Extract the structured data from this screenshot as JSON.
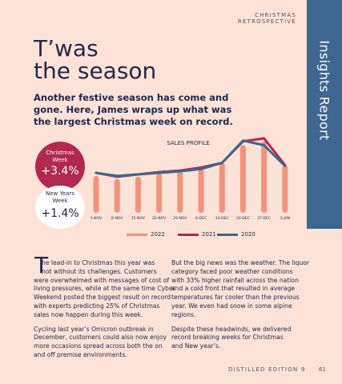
{
  "header": {
    "section": "CHRISTMAS RETROSPECTIVE",
    "side_tab": "Insights Report"
  },
  "article": {
    "title_lines": [
      "T’was",
      "the season"
    ],
    "intro_lines": [
      "Another festive season has come and",
      "gone. Here, James wraps up what was",
      "the largest Christmas week on record."
    ],
    "body_left": {
      "dropcap": "T",
      "p1": [
        "he lead-in to Christmas this year was",
        "not without its challenges. Customers",
        "were overwhelmed with messages of cost of",
        "living pressures, while at the same time Cyber",
        "Weekend posted the biggest result on record",
        "with experts predicting 25% of Christmas",
        "sales now happen during this week."
      ],
      "p2": [
        "Cycling last year’s Omicron outbreak in",
        "December, customers could also now enjoy",
        "more occasions spread across both the on",
        "and off premise environments."
      ]
    },
    "body_right": {
      "p1": [
        "But the big news was the weather. The liquor",
        "category faced poor weather conditions",
        "with 33% higher rainfall across the nation",
        "and a cold front that resulted in average",
        "temperatures far cooler than the previous",
        "year. We even had snow in some alpine",
        "regions."
      ],
      "p2": [
        "Despite these headwinds, we delivered",
        "record breaking weeks for Christmas",
        "and New year’s."
      ]
    }
  },
  "stats": [
    {
      "label_lines": [
        "Christmas",
        "Week"
      ],
      "value": "+3.4%"
    },
    {
      "label_lines": [
        "New Years",
        "Week"
      ],
      "value": "+1.4%"
    }
  ],
  "chart_data": {
    "type": "bar",
    "title": "SALES PROFILE",
    "categories": [
      "1-NOV",
      "8-NOV",
      "15-NOV",
      "22-NOV",
      "29-NOV",
      "6-DEC",
      "13-DEC",
      "20-DEC",
      "27-DEC",
      "3-JAN"
    ],
    "series": [
      {
        "name": "2022",
        "type": "bar",
        "color": "#f2937c",
        "values": [
          48,
          44,
          47,
          51,
          54,
          58,
          65,
          88,
          93,
          62
        ]
      },
      {
        "name": "2021",
        "type": "line",
        "color": "#b12850",
        "values": [
          52,
          47,
          50,
          53,
          55,
          59,
          65,
          93,
          97,
          62
        ]
      },
      {
        "name": "2020",
        "type": "line",
        "color": "#3e6690",
        "values": [
          52,
          48,
          50,
          52,
          54,
          57,
          65,
          94,
          88,
          61
        ]
      }
    ],
    "ylim": [
      0,
      100
    ],
    "xlabel": "",
    "ylabel": "",
    "grid": false,
    "legend_position": "bottom"
  },
  "footer": {
    "edition": "DISTILLED EDITION 9",
    "page_number": "61"
  },
  "colors": {
    "background": "#fde3d7",
    "navy": "#23284a",
    "blue": "#3e6690",
    "crimson": "#b12850",
    "salmon": "#f2937c"
  }
}
